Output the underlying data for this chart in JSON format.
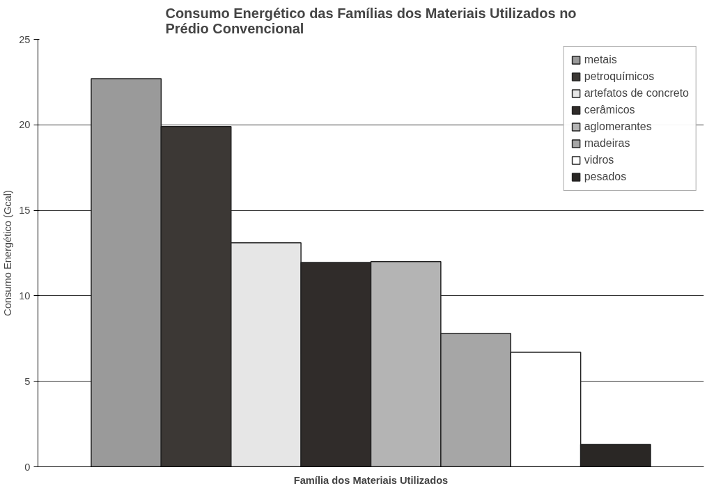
{
  "chart_data": {
    "type": "bar",
    "title": "Consumo Energético das Famílias dos Materiais Utilizados no Prédio Convencional",
    "xlabel": "Família dos Materiais Utilizados",
    "ylabel": "Consumo Energético (Gcal)",
    "categories": [
      null
    ],
    "series": [
      {
        "name": "metais",
        "color": "#9a9a9a",
        "values": [
          22.7
        ]
      },
      {
        "name": "petroquímicos",
        "color": "#3c3835",
        "values": [
          19.9
        ]
      },
      {
        "name": "artefatos de concreto",
        "color": "#e6e6e6",
        "values": [
          13.1
        ]
      },
      {
        "name": "cerâmicos",
        "color": "#302c2a",
        "values": [
          11.95
        ]
      },
      {
        "name": "aglomerantes",
        "color": "#b4b4b4",
        "values": [
          12.0
        ]
      },
      {
        "name": "madeiras",
        "color": "#a6a6a6",
        "values": [
          7.8
        ]
      },
      {
        "name": "vidros",
        "color": "#ffffff",
        "values": [
          6.7
        ]
      },
      {
        "name": "pesados",
        "color": "#2a2725",
        "values": [
          1.3
        ]
      }
    ],
    "ylim": [
      0,
      25
    ],
    "yticks": [
      0,
      5,
      10,
      15,
      20,
      25
    ],
    "grid": "y",
    "legend": "top right"
  }
}
